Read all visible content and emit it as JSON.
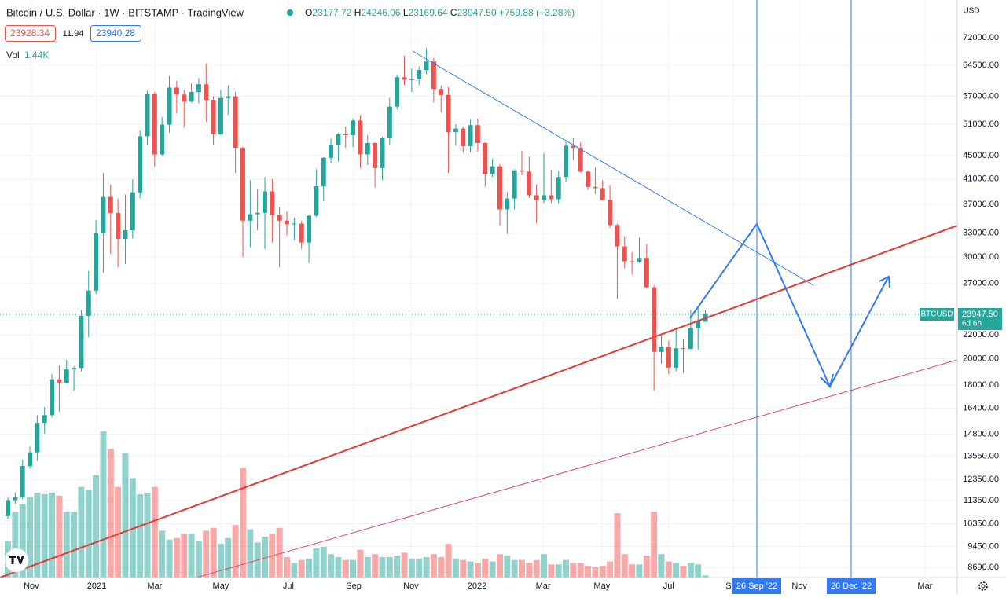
{
  "header": {
    "title": "Bitcoin / U.S. Dollar · 1W · BITSTAMP · TradingView",
    "ohlc": [
      {
        "label": "O",
        "value": "23177.72"
      },
      {
        "label": "H",
        "value": "24246.06"
      },
      {
        "label": "L",
        "value": "23169.64"
      },
      {
        "label": "C",
        "value": "23947.50"
      }
    ],
    "change": "+759.88 (+3.28%)",
    "bid": "23928.34",
    "spread": "11.94",
    "ask": "23940.28",
    "volume_label": "Vol",
    "volume_value": "1.44K",
    "currency": "USD"
  },
  "price_tag": {
    "symbol": "BTCUSD",
    "price": "23947.50",
    "countdown": "6d 6h"
  },
  "date_markers": [
    "26 Sep '22",
    "26 Dec '22"
  ],
  "chart_data": {
    "type": "candlestick",
    "log_scale": true,
    "grid": true,
    "up_color": "#26a69a",
    "down_color": "#ef5350",
    "ylim": [
      8350,
      83700
    ],
    "yticks": [
      {
        "value": 72000,
        "label": "72000.00"
      },
      {
        "value": 64500,
        "label": "64500.00"
      },
      {
        "value": 57000,
        "label": "57000.00"
      },
      {
        "value": 51000,
        "label": "51000.00"
      },
      {
        "value": 45000,
        "label": "45000.00"
      },
      {
        "value": 41000,
        "label": "41000.00"
      },
      {
        "value": 37000,
        "label": "37000.00"
      },
      {
        "value": 33000,
        "label": "33000.00"
      },
      {
        "value": 30000,
        "label": "30000.00"
      },
      {
        "value": 27000,
        "label": "27000.00"
      },
      {
        "value": 22000,
        "label": "22000.00"
      },
      {
        "value": 20000,
        "label": "20000.00"
      },
      {
        "value": 18000,
        "label": "18000.00"
      },
      {
        "value": 16400,
        "label": "16400.00"
      },
      {
        "value": 14800,
        "label": "14800.00"
      },
      {
        "value": 13550,
        "label": "13550.00"
      },
      {
        "value": 12350,
        "label": "12350.00"
      },
      {
        "value": 11350,
        "label": "11350.00"
      },
      {
        "value": 10350,
        "label": "10350.00"
      },
      {
        "value": 9450,
        "label": "9450.00"
      },
      {
        "value": 8690,
        "label": "8690.00"
      }
    ],
    "xlim": [
      -1.07,
      129.3
    ],
    "xticks": [
      {
        "value": 3.2,
        "label": "Nov"
      },
      {
        "value": 12.1,
        "label": "2021"
      },
      {
        "value": 20,
        "label": "Mar"
      },
      {
        "value": 29,
        "label": "May"
      },
      {
        "value": 38.2,
        "label": "Jul"
      },
      {
        "value": 47.1,
        "label": "Sep"
      },
      {
        "value": 54.9,
        "label": "Nov"
      },
      {
        "value": 63.9,
        "label": "2022"
      },
      {
        "value": 72.9,
        "label": "Mar"
      },
      {
        "value": 80.9,
        "label": "May"
      },
      {
        "value": 90,
        "label": "Jul"
      },
      {
        "value": 98.8,
        "label": "Sep"
      },
      {
        "value": 107.8,
        "label": "Nov"
      },
      {
        "value": 124.9,
        "label": "Mar"
      }
    ],
    "y2lim": [
      0,
      395000
    ],
    "series": [
      {
        "name": "BTCUSD",
        "values": [
          [
            10670,
            11490,
            10550,
            11370
          ],
          [
            11370,
            11720,
            11200,
            11500
          ],
          [
            11500,
            13350,
            11410,
            13030
          ],
          [
            13030,
            14070,
            12880,
            13760
          ],
          [
            13760,
            15960,
            13290,
            15480
          ],
          [
            15480,
            16490,
            14830,
            15960
          ],
          [
            15960,
            18800,
            15800,
            18420
          ],
          [
            18420,
            19480,
            16200,
            18180
          ],
          [
            18180,
            19920,
            18100,
            19160
          ],
          [
            19160,
            19400,
            17600,
            19270
          ],
          [
            19270,
            24300,
            19000,
            23730
          ],
          [
            23730,
            28400,
            21800,
            26250
          ],
          [
            26250,
            34800,
            25900,
            33000
          ],
          [
            33000,
            41950,
            28200,
            38150
          ],
          [
            38150,
            40100,
            30400,
            35790
          ],
          [
            35790,
            37850,
            28800,
            32250
          ],
          [
            32250,
            38500,
            29200,
            33400
          ],
          [
            33400,
            40900,
            32300,
            38850
          ],
          [
            38850,
            49700,
            37900,
            48600
          ],
          [
            48600,
            58300,
            47000,
            57500
          ],
          [
            57500,
            58000,
            43000,
            45200
          ],
          [
            45200,
            52500,
            45000,
            50900
          ],
          [
            50900,
            61800,
            49300,
            59000
          ],
          [
            59000,
            60600,
            53200,
            57400
          ],
          [
            57400,
            58400,
            50300,
            55800
          ],
          [
            55800,
            60000,
            55600,
            58000
          ],
          [
            58000,
            61300,
            55400,
            59800
          ],
          [
            59800,
            64900,
            51500,
            56200
          ],
          [
            56200,
            57000,
            47000,
            49000
          ],
          [
            49000,
            58500,
            48800,
            56600
          ],
          [
            56600,
            59500,
            52900,
            57000
          ],
          [
            57000,
            58000,
            42000,
            46400
          ],
          [
            46400,
            46600,
            30000,
            34700
          ],
          [
            34700,
            40800,
            31200,
            35600
          ],
          [
            35600,
            39400,
            33400,
            35800
          ],
          [
            35800,
            41300,
            31000,
            39000
          ],
          [
            39000,
            41000,
            31800,
            35500
          ],
          [
            35500,
            36600,
            28800,
            34700
          ],
          [
            34700,
            36000,
            32700,
            34200
          ],
          [
            34200,
            35100,
            32100,
            34300
          ],
          [
            34300,
            34700,
            31000,
            31800
          ],
          [
            31800,
            35400,
            29300,
            35400
          ],
          [
            35400,
            42600,
            35200,
            39800
          ],
          [
            39800,
            44700,
            37500,
            44600
          ],
          [
            44600,
            48100,
            43700,
            47000
          ],
          [
            47000,
            49300,
            43900,
            49000
          ],
          [
            49000,
            50500,
            46400,
            48800
          ],
          [
            48800,
            52200,
            46500,
            51750
          ],
          [
            51750,
            52900,
            42800,
            45200
          ],
          [
            45200,
            48800,
            43300,
            47300
          ],
          [
            47300,
            47400,
            39600,
            42800
          ],
          [
            42800,
            48500,
            40800,
            48200
          ],
          [
            48200,
            56600,
            47000,
            54700
          ],
          [
            54700,
            62000,
            54100,
            61500
          ],
          [
            61500,
            67000,
            59600,
            60900
          ],
          [
            60900,
            63700,
            58000,
            61000
          ],
          [
            61000,
            64200,
            59600,
            63300
          ],
          [
            63300,
            69000,
            62300,
            65500
          ],
          [
            65500,
            66400,
            55600,
            58700
          ],
          [
            58700,
            59500,
            53500,
            57300
          ],
          [
            57300,
            59100,
            42000,
            49400
          ],
          [
            49400,
            51000,
            46800,
            50100
          ],
          [
            50100,
            50500,
            45500,
            46700
          ],
          [
            46700,
            51900,
            45600,
            50800
          ],
          [
            50800,
            52100,
            45700,
            47300
          ],
          [
            47300,
            47500,
            39700,
            41800
          ],
          [
            41800,
            44400,
            41300,
            43100
          ],
          [
            43100,
            43500,
            34000,
            36300
          ],
          [
            36300,
            38900,
            32900,
            37900
          ],
          [
            37900,
            42600,
            36300,
            42400
          ],
          [
            42400,
            45900,
            41600,
            42200
          ],
          [
            42200,
            44800,
            38000,
            38400
          ],
          [
            38400,
            40100,
            34300,
            37700
          ],
          [
            37700,
            45400,
            37200,
            38400
          ],
          [
            38400,
            42500,
            37200,
            37800
          ],
          [
            37800,
            42300,
            37200,
            41300
          ],
          [
            41300,
            47700,
            40500,
            46800
          ],
          [
            46800,
            48200,
            44200,
            46400
          ],
          [
            46400,
            47400,
            42000,
            42200
          ],
          [
            42200,
            42400,
            39200,
            39700
          ],
          [
            39700,
            42900,
            38600,
            39500
          ],
          [
            39500,
            40800,
            37600,
            37700
          ],
          [
            37700,
            40000,
            33700,
            34100
          ],
          [
            34100,
            34300,
            25400,
            31300
          ],
          [
            31300,
            32600,
            28700,
            29500
          ],
          [
            29500,
            30600,
            28000,
            29450
          ],
          [
            29450,
            32400,
            29300,
            29900
          ],
          [
            29900,
            31600,
            26500,
            26600
          ],
          [
            26600,
            26800,
            17600,
            20550
          ],
          [
            20550,
            21900,
            19600,
            21000
          ],
          [
            21000,
            21500,
            18800,
            19300
          ],
          [
            19300,
            22500,
            19000,
            20850
          ],
          [
            20850,
            21600,
            18900,
            20800
          ],
          [
            20800,
            24300,
            20750,
            22600
          ],
          [
            22600,
            24700,
            20700,
            23300
          ],
          [
            23177.72,
            24246.06,
            23169.64,
            23947.5
          ]
        ]
      },
      {
        "name": "Vol",
        "axis": "y2",
        "values": [
          25000,
          45000,
          50000,
          55000,
          58000,
          57000,
          58000,
          56000,
          45000,
          45000,
          62000,
          60000,
          70000,
          100000,
          88000,
          62000,
          85000,
          68000,
          57000,
          58000,
          62000,
          32000,
          26000,
          27000,
          30000,
          30000,
          25000,
          32000,
          34000,
          23000,
          27000,
          36000,
          75000,
          33000,
          24000,
          28000,
          30000,
          34000,
          14000,
          10000,
          12000,
          13000,
          20000,
          21000,
          16000,
          14000,
          12000,
          12000,
          19000,
          14000,
          16000,
          14000,
          14000,
          15000,
          17000,
          13000,
          13000,
          14000,
          16000,
          14000,
          23000,
          13000,
          12000,
          11000,
          10000,
          13000,
          11000,
          16000,
          15000,
          12000,
          12000,
          10000,
          12000,
          16000,
          9000,
          9000,
          12000,
          10000,
          10000,
          8000,
          7000,
          8000,
          11000,
          44000,
          16000,
          9000,
          9000,
          15000,
          45000,
          16000,
          11000,
          10000,
          8000,
          10000,
          9000,
          1440
        ]
      }
    ]
  }
}
